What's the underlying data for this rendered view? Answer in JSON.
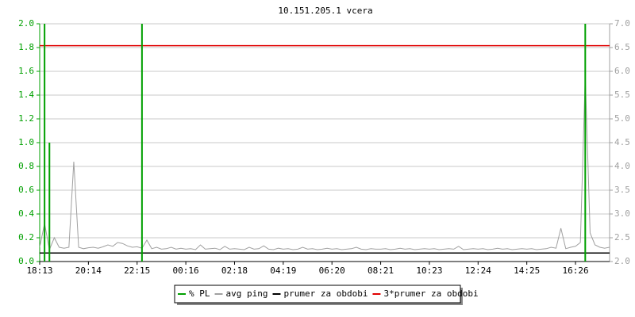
{
  "chart_data": {
    "type": "line",
    "title": "10.151.205.1 vcera",
    "xlim": [
      0,
      117
    ],
    "xticks": [
      {
        "value": 0,
        "label": "18:13"
      },
      {
        "value": 10,
        "label": "20:14"
      },
      {
        "value": 20,
        "label": "22:15"
      },
      {
        "value": 30,
        "label": "00:16"
      },
      {
        "value": 40,
        "label": "02:18"
      },
      {
        "value": 50,
        "label": "04:19"
      },
      {
        "value": 60,
        "label": "06:20"
      },
      {
        "value": 70,
        "label": "08:21"
      },
      {
        "value": 80,
        "label": "10:23"
      },
      {
        "value": 90,
        "label": "12:24"
      },
      {
        "value": 100,
        "label": "14:25"
      },
      {
        "value": 110,
        "label": "16:26"
      }
    ],
    "ylim": [
      0,
      2
    ],
    "yticks": [
      {
        "value": 0,
        "label": "0.0"
      },
      0.2,
      0.4,
      0.6,
      0.8,
      {
        "value": 1,
        "label": "1.0"
      },
      1.2,
      1.4,
      1.6,
      1.8,
      {
        "value": 2,
        "label": "2.0"
      }
    ],
    "y2lim": [
      2,
      7
    ],
    "y2ticks": [
      {
        "value": 2,
        "label": "2.0"
      },
      2.5,
      {
        "value": 3,
        "label": "3.0"
      },
      3.5,
      {
        "value": 4,
        "label": "4.0"
      },
      4.5,
      {
        "value": 5,
        "label": "5.0"
      },
      5.5,
      {
        "value": 6,
        "label": "6.0"
      },
      6.5,
      {
        "value": 7,
        "label": "7.0"
      }
    ],
    "grid": true,
    "series": [
      {
        "name": "% PL",
        "color": "#00a000",
        "values": [
          0,
          2,
          1,
          0,
          0,
          0,
          0,
          0,
          0,
          0,
          0,
          0,
          0,
          0,
          0,
          0,
          0,
          0,
          0,
          0,
          0,
          2,
          0,
          0,
          0,
          0,
          0,
          0,
          0,
          0,
          0,
          0,
          0,
          0,
          0,
          0,
          0,
          0,
          0,
          0,
          0,
          0,
          0,
          0,
          0,
          0,
          0,
          0,
          0,
          0,
          0,
          0,
          0,
          0,
          0,
          0,
          0,
          0,
          0,
          0,
          0,
          0,
          0,
          0,
          0,
          0,
          0,
          0,
          0,
          0,
          0,
          0,
          0,
          0,
          0,
          0,
          0,
          0,
          0,
          0,
          0,
          0,
          0,
          0,
          0,
          0,
          0,
          0,
          0,
          0,
          0,
          0,
          0,
          0,
          0,
          0,
          0,
          0,
          0,
          0,
          0,
          0,
          0,
          0,
          0,
          0,
          0,
          0,
          0,
          0,
          0,
          0,
          2,
          0,
          0,
          0,
          0,
          0
        ]
      },
      {
        "name": "avg ping",
        "color": "#a0a0a0",
        "axis": "y2",
        "values": [
          2.3,
          2.8,
          2.25,
          2.5,
          2.3,
          2.28,
          2.3,
          4.1,
          2.3,
          2.27,
          2.29,
          2.3,
          2.28,
          2.31,
          2.35,
          2.32,
          2.4,
          2.38,
          2.33,
          2.3,
          2.31,
          2.28,
          2.45,
          2.27,
          2.3,
          2.26,
          2.27,
          2.3,
          2.26,
          2.28,
          2.26,
          2.27,
          2.25,
          2.35,
          2.26,
          2.27,
          2.28,
          2.25,
          2.32,
          2.26,
          2.27,
          2.26,
          2.25,
          2.3,
          2.26,
          2.27,
          2.33,
          2.26,
          2.25,
          2.28,
          2.26,
          2.27,
          2.25,
          2.26,
          2.3,
          2.26,
          2.27,
          2.25,
          2.26,
          2.28,
          2.26,
          2.27,
          2.25,
          2.26,
          2.27,
          2.3,
          2.26,
          2.25,
          2.27,
          2.26,
          2.26,
          2.27,
          2.25,
          2.26,
          2.28,
          2.26,
          2.27,
          2.25,
          2.26,
          2.27,
          2.26,
          2.27,
          2.25,
          2.26,
          2.27,
          2.26,
          2.32,
          2.25,
          2.26,
          2.27,
          2.26,
          2.27,
          2.25,
          2.26,
          2.28,
          2.26,
          2.27,
          2.25,
          2.26,
          2.27,
          2.26,
          2.27,
          2.25,
          2.26,
          2.27,
          2.3,
          2.28,
          2.7,
          2.27,
          2.3,
          2.32,
          2.4,
          5.9,
          2.6,
          2.35,
          2.3,
          2.28,
          2.3
        ]
      }
    ],
    "reference_lines": [
      {
        "name": "prumer za obdobi",
        "color": "#000000",
        "axis": "y2",
        "value": 2.18
      },
      {
        "name": "3*prumer za obdobi",
        "color": "#e00000",
        "axis": "y2",
        "value": 6.54
      }
    ]
  }
}
